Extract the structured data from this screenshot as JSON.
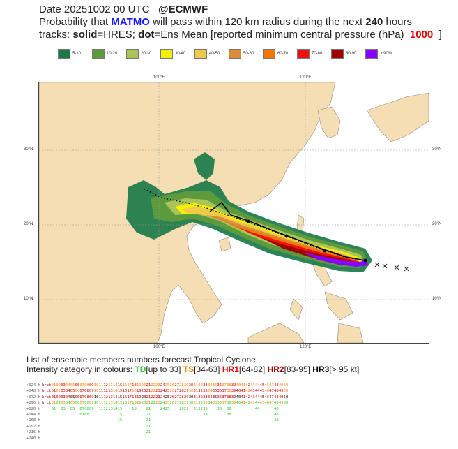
{
  "header": {
    "line1_date": "Date 20251002 00 UTC",
    "line1_org": "@ECMWF",
    "line2_prefix": "Probability that",
    "line2_storm": "MATMO",
    "line2_mid": "will pass within 120 km radius during the next",
    "line2_hours": "240",
    "line2_suffix": "hours",
    "line3_a": "tracks:",
    "line3_solid": "solid",
    "line3_b": "=HRES;",
    "line3_dot": "dot",
    "line3_c": "=Ens Mean [reported minimum central pressure (hPa)",
    "line3_pressure": "1000",
    "line3_end": "]"
  },
  "legend": [
    {
      "label": "5-10",
      "color": "#1b7a4a"
    },
    {
      "label": "10-20",
      "color": "#5d9a3c"
    },
    {
      "label": "20-30",
      "color": "#a9c458"
    },
    {
      "label": "30-40",
      "color": "#f4f000"
    },
    {
      "label": "40-50",
      "color": "#f0c84a"
    },
    {
      "label": "50-60",
      "color": "#d98c3a"
    },
    {
      "label": "60-70",
      "color": "#f07800"
    },
    {
      "label": "70-80",
      "color": "#f01010"
    },
    {
      "label": "80-90",
      "color": "#a00000"
    },
    {
      "label": "> 90%",
      "color": "#8a00ff"
    }
  ],
  "map": {
    "lon_ticks": [
      "100°E",
      "120°E"
    ],
    "lat_ticks": [
      "30°N",
      "20°N",
      "10°N"
    ]
  },
  "bottom": {
    "title": "List of ensemble members numbers forecast Tropical Cyclone",
    "intensity_prefix": "Intensity category in colours:",
    "td": "TD",
    "td_range": "[up to 33]",
    "ts": "TS",
    "ts_range": "[34-63]",
    "hr1": "HR1",
    "hr1_range": "[64-82]",
    "hr2": "HR2",
    "hr2_range": "[83-95]",
    "hr3": "HR3",
    "hr3_range": "[> 95 kt]"
  },
  "members": {
    "row_labels": [
      "+024 h",
      "+048 h",
      "+072 h",
      "+096 h",
      "+120 h",
      "+144 h",
      "+168 h",
      "+192 h",
      "+216 h",
      "+240 h"
    ],
    "numbers": [
      "hr",
      "ct",
      "01",
      "02",
      "03",
      "04",
      "05",
      "06",
      "07",
      "08",
      "09",
      "10",
      "11",
      "12",
      "13",
      "14",
      "15",
      "16",
      "17",
      "18",
      "19",
      "20",
      "21",
      "22",
      "23",
      "24",
      "25",
      "26",
      "27",
      "28",
      "29",
      "30",
      "31",
      "32",
      "33",
      "34",
      "35",
      "36",
      "37",
      "38",
      "39",
      "40",
      "41",
      "42",
      "43",
      "44",
      "45",
      "46",
      "47",
      "48",
      "49",
      "50"
    ],
    "row_120h": [
      "01",
      "03",
      "05",
      "07",
      "08",
      "09",
      "11",
      "12",
      "13",
      "14",
      "15",
      "18",
      "21",
      "24",
      "25",
      "28",
      "29",
      "31",
      "32",
      "33",
      "36",
      "38",
      "44",
      "48"
    ],
    "row_144h": [
      "07",
      "08",
      "15",
      "21",
      "33",
      "38",
      "48"
    ],
    "row_168h": [
      "15",
      "21",
      "48"
    ],
    "row_192h": [
      "21"
    ],
    "row_216h": [
      "21"
    ],
    "colors": {
      "td": "#33cc33",
      "ts": "#ff8800",
      "hr1": "#ee0000",
      "hr2": "#aa0000",
      "hr3": "#000000"
    }
  }
}
